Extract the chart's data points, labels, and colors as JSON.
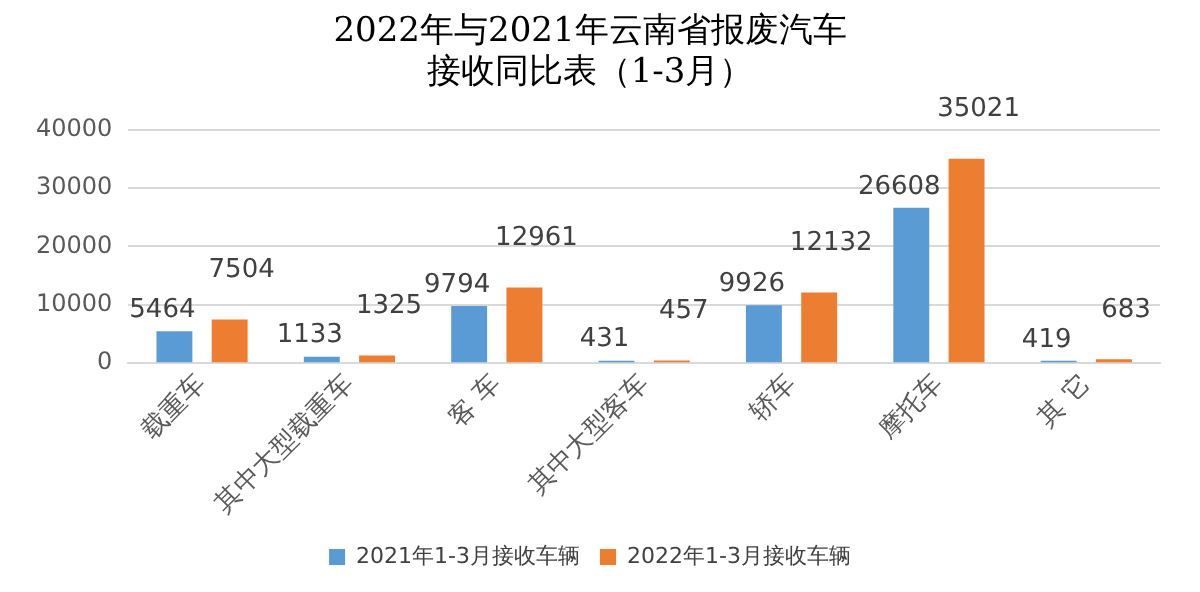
{
  "chart_data": {
    "type": "bar",
    "title": "2022年与2021年云南省报废汽车接收同比表（1-3月）",
    "categories": [
      "载重车",
      "其中大型载重车",
      "客 车",
      "其中大型客车",
      "轿车",
      "摩托车",
      "其 它"
    ],
    "series": [
      {
        "name": "2021年1-3月接收车辆",
        "color": "#5b9bd5",
        "values": [
          5464,
          1133,
          9794,
          431,
          9926,
          26608,
          419
        ]
      },
      {
        "name": "2022年1-3月接收车辆",
        "color": "#ed7d31",
        "values": [
          7504,
          1325,
          12961,
          457,
          12132,
          35021,
          683
        ]
      }
    ],
    "ylim": [
      0,
      40000
    ],
    "yticks": [
      0,
      10000,
      20000,
      30000,
      40000
    ],
    "grid": "y",
    "legend": "bottom",
    "data_labels": true
  }
}
